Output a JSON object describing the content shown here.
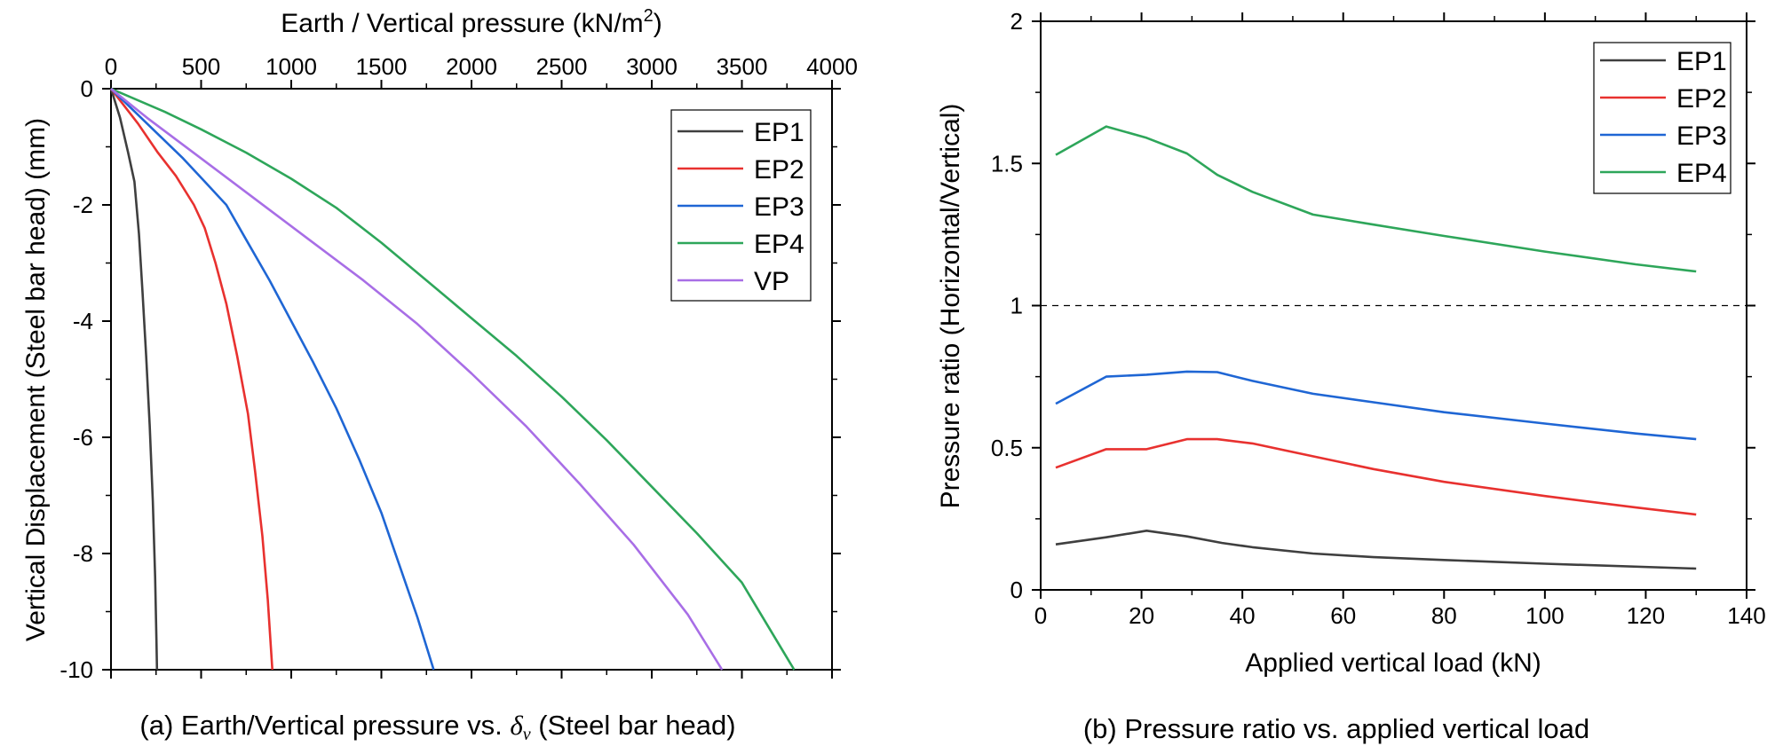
{
  "colors": {
    "EP1": "#3f3f3f",
    "EP2": "#e8312f",
    "EP3": "#1f66d4",
    "EP4": "#2ea65a",
    "VP": "#a86ee6",
    "axis": "#000000",
    "ref_line": "#000000"
  },
  "chart_data": [
    {
      "type": "line",
      "panel": "a",
      "caption": {
        "prefix": "(a) Earth/Vertical pressure vs. ",
        "symbol": "δ",
        "subscript": "v",
        "suffix": " (Steel bar head)"
      },
      "xlabel": "Earth / Vertical pressure (kN/m",
      "xlabel_sup": "2",
      "xlabel_close": ")",
      "ylabel": "Vertical Displacement (Steel bar head) (mm)",
      "x_axis_position": "top",
      "xlim": [
        0,
        4000
      ],
      "ylim": [
        -10,
        0
      ],
      "xticks": [
        0,
        500,
        1000,
        1500,
        2000,
        2500,
        3000,
        3500,
        4000
      ],
      "yticks": [
        0,
        -2,
        -4,
        -6,
        -8,
        -10
      ],
      "legend_position": "top-right",
      "series": [
        {
          "name": "EP1",
          "color_key": "EP1",
          "x": [
            0,
            50,
            95,
            130,
            155,
            175,
            195,
            215,
            232,
            245,
            252,
            255
          ],
          "y": [
            0,
            -0.5,
            -1.1,
            -1.6,
            -2.5,
            -3.5,
            -4.6,
            -5.8,
            -7.1,
            -8.4,
            -9.5,
            -10
          ]
        },
        {
          "name": "EP2",
          "color_key": "EP2",
          "x": [
            0,
            150,
            260,
            360,
            460,
            520,
            580,
            640,
            700,
            760,
            800,
            840,
            870,
            895
          ],
          "y": [
            0,
            -0.6,
            -1.1,
            -1.5,
            -2.0,
            -2.4,
            -3.0,
            -3.7,
            -4.6,
            -5.6,
            -6.6,
            -7.7,
            -8.8,
            -10
          ]
        },
        {
          "name": "EP3",
          "color_key": "EP3",
          "x": [
            0,
            200,
            400,
            520,
            640,
            750,
            880,
            1000,
            1120,
            1250,
            1380,
            1500,
            1600,
            1700,
            1790
          ],
          "y": [
            0,
            -0.6,
            -1.2,
            -1.6,
            -2.0,
            -2.6,
            -3.3,
            -4.0,
            -4.7,
            -5.5,
            -6.4,
            -7.3,
            -8.2,
            -9.1,
            -10
          ]
        },
        {
          "name": "EP4",
          "color_key": "EP4",
          "x": [
            0,
            300,
            500,
            750,
            1000,
            1250,
            1500,
            1750,
            2000,
            2250,
            2500,
            2750,
            3000,
            3250,
            3500,
            3790
          ],
          "y": [
            0,
            -0.4,
            -0.7,
            -1.1,
            -1.55,
            -2.05,
            -2.65,
            -3.3,
            -3.95,
            -4.6,
            -5.3,
            -6.05,
            -6.85,
            -7.65,
            -8.5,
            -10
          ]
        },
        {
          "name": "VP",
          "color_key": "VP",
          "x": [
            0,
            200,
            500,
            800,
            1100,
            1400,
            1700,
            2000,
            2300,
            2600,
            2900,
            3200,
            3390
          ],
          "y": [
            0,
            -0.5,
            -1.2,
            -1.9,
            -2.6,
            -3.3,
            -4.05,
            -4.9,
            -5.8,
            -6.8,
            -7.85,
            -9.05,
            -10
          ]
        }
      ]
    },
    {
      "type": "line",
      "panel": "b",
      "caption": "(b) Pressure ratio vs. applied vertical load",
      "xlabel": "Applied vertical load (kN)",
      "ylabel": "Pressure ratio (Horizontal/Vertical)",
      "xlim": [
        0,
        140
      ],
      "ylim": [
        0,
        2
      ],
      "xticks": [
        0,
        20,
        40,
        60,
        80,
        100,
        120,
        140
      ],
      "yticks": [
        0,
        0.5,
        1,
        1.5,
        2
      ],
      "yticklabels": [
        "0",
        "0.5",
        "1",
        "1.5",
        "2"
      ],
      "reference_line": {
        "y": 1,
        "style": "dashed"
      },
      "legend_position": "top-right",
      "series": [
        {
          "name": "EP1",
          "color_key": "EP1",
          "x": [
            3,
            13,
            21,
            29,
            36,
            42,
            54,
            66,
            80,
            100,
            130
          ],
          "y": [
            0.16,
            0.185,
            0.208,
            0.188,
            0.165,
            0.15,
            0.128,
            0.115,
            0.105,
            0.092,
            0.075
          ]
        },
        {
          "name": "EP2",
          "color_key": "EP2",
          "x": [
            3,
            13,
            21,
            29,
            35,
            42,
            54,
            66,
            80,
            100,
            118,
            130
          ],
          "y": [
            0.43,
            0.495,
            0.495,
            0.53,
            0.53,
            0.515,
            0.47,
            0.425,
            0.38,
            0.33,
            0.29,
            0.265
          ]
        },
        {
          "name": "EP3",
          "color_key": "EP3",
          "x": [
            3,
            13,
            21,
            29,
            35,
            42,
            54,
            66,
            80,
            100,
            118,
            130
          ],
          "y": [
            0.655,
            0.75,
            0.757,
            0.768,
            0.766,
            0.735,
            0.69,
            0.66,
            0.625,
            0.585,
            0.55,
            0.53
          ]
        },
        {
          "name": "EP4",
          "color_key": "EP4",
          "x": [
            3,
            13,
            21,
            29,
            35,
            42,
            54,
            66,
            80,
            100,
            118,
            130
          ],
          "y": [
            1.53,
            1.63,
            1.59,
            1.535,
            1.46,
            1.4,
            1.32,
            1.285,
            1.245,
            1.19,
            1.145,
            1.12
          ]
        }
      ]
    }
  ]
}
